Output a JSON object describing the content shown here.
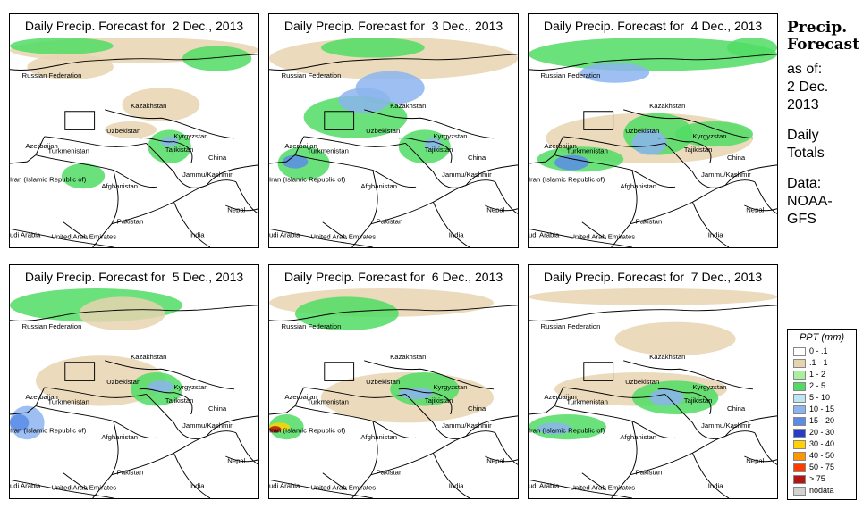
{
  "panels": [
    {
      "title": "Daily Precip. Forecast for  2 Dec., 2013"
    },
    {
      "title": "Daily Precip. Forecast for  3 Dec., 2013"
    },
    {
      "title": "Daily Precip. Forecast for  4 Dec., 2013"
    },
    {
      "title": "Daily Precip. Forecast for  5 Dec., 2013"
    },
    {
      "title": "Daily Precip. Forecast for  6 Dec., 2013"
    },
    {
      "title": "Daily Precip. Forecast for  7 Dec., 2013"
    }
  ],
  "map_labels": {
    "russia": "Russian Federation",
    "kazakhstan": "Kazakhstan",
    "uzbekistan": "Uzbekistan",
    "azerbaijan": "Azerbaijan",
    "turkmenistan": "Turkmenistan",
    "kyrgyzstan": "Kyrgyzstan",
    "tajikistan": "Tajikistan",
    "china": "China",
    "jammu": "Jammu/Kashmir",
    "iran": "Iran  (Islamic Republic of)",
    "afghanistan": "Afghanistan",
    "nepal": "Nepal",
    "pakistan": "Pakistan",
    "saudi": "udi Arabia",
    "uae": "United Arab Emirates",
    "india": "India"
  },
  "side": {
    "heading_1": "Precip.",
    "heading_2": "Forecast",
    "asof": "as of:",
    "date_1": "2 Dec.",
    "date_2": "2013",
    "daily": "Daily",
    "totals": "Totals",
    "data": "Data:",
    "src_1": "NOAA-",
    "src_2": "GFS"
  },
  "legend": {
    "title": "PPT (mm)",
    "items": [
      {
        "label": "0 - .1",
        "color": "#ffffff"
      },
      {
        "label": ".1 - 1",
        "color": "#e8d3b0"
      },
      {
        "label": "1 - 2",
        "color": "#a8f0a0"
      },
      {
        "label": "2 - 5",
        "color": "#50dc64"
      },
      {
        "label": "5 - 10",
        "color": "#bde6f5"
      },
      {
        "label": "10 - 15",
        "color": "#8cb4ef"
      },
      {
        "label": "15 - 20",
        "color": "#5a8ce6"
      },
      {
        "label": "20 - 30",
        "color": "#283cc8"
      },
      {
        "label": "30 - 40",
        "color": "#ffd200"
      },
      {
        "label": "40 - 50",
        "color": "#ff9600"
      },
      {
        "label": "50 - 75",
        "color": "#ff3c00"
      },
      {
        "label": "> 75",
        "color": "#b41414"
      },
      {
        "label": "nodata",
        "color": "#d2d2d2"
      }
    ]
  }
}
